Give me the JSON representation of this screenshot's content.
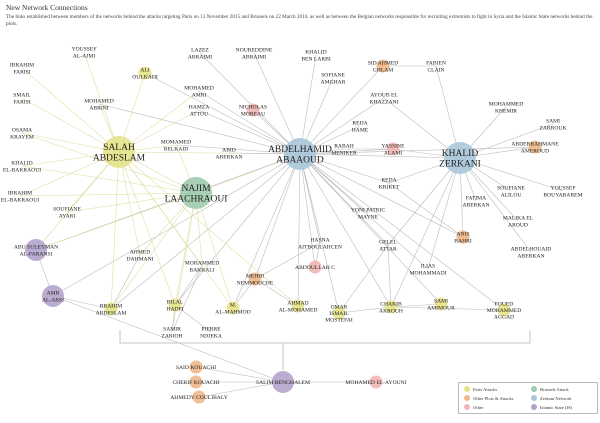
{
  "title": "New Network Connections",
  "description": "The links established between members of the networks behind the attacks targeting Paris on 13 November 2015 and Brussels on 22 March 2016, as well as between the Belgian networks responsible for recruiting extremists to fight in Syria and the Islamic State networks behind the plots.",
  "colors": {
    "paris": "#e6e28a",
    "brussels": "#9fcbae",
    "other_plots": "#f0b88a",
    "zerkani": "#a8c6d8",
    "other": "#f1b7b5",
    "islamic_state": "#b4a4cc",
    "edge": "#b5b5b5",
    "edge_paris": "#dedc9a"
  },
  "legend": {
    "items": [
      {
        "label": "Paris Attacks",
        "color_key": "paris"
      },
      {
        "label": "Brussels Attack",
        "color_key": "brussels"
      },
      {
        "label": "Other Plots & Attacks",
        "color_key": "other_plots"
      },
      {
        "label": "Zerkani Network",
        "color_key": "zerkani"
      },
      {
        "label": "Other",
        "color_key": "other"
      },
      {
        "label": "Islamic State (IS)",
        "color_key": "islamic_state"
      }
    ]
  },
  "network": {
    "nodes": [
      {
        "id": "youssef_alajmi",
        "lines": [
          "YOUSSEF",
          "AL-AJMI"
        ],
        "group": "none",
        "weight": 0
      },
      {
        "id": "ibrahim_farisi",
        "lines": [
          "IBRAHIM",
          "FARISI"
        ],
        "group": "none",
        "weight": 0
      },
      {
        "id": "smail_farisi",
        "lines": [
          "SMAIL",
          "FARISI"
        ],
        "group": "none",
        "weight": 0
      },
      {
        "id": "ali_oulkadi",
        "lines": [
          "ALI",
          "OULKADI"
        ],
        "group": "paris",
        "weight": 1
      },
      {
        "id": "lazez_abraimi",
        "lines": [
          "LAZEZ",
          "ABRAIMI"
        ],
        "group": "none",
        "weight": 0
      },
      {
        "id": "noureddine_abraimi",
        "lines": [
          "NOUREDDINE",
          "ABRAIMI"
        ],
        "group": "none",
        "weight": 0
      },
      {
        "id": "khalid_benlarbi",
        "lines": [
          "KHALID",
          "BEN LARBI"
        ],
        "group": "none",
        "weight": 0
      },
      {
        "id": "sid_ahmed_ghlam",
        "lines": [
          "SID AHMED",
          "GHLAM"
        ],
        "group": "other_plots",
        "weight": 1
      },
      {
        "id": "fabien_clain",
        "lines": [
          "FABIEN",
          "CLAIN"
        ],
        "group": "none",
        "weight": 0
      },
      {
        "id": "sofiane_amghar",
        "lines": [
          "SOFIANE",
          "AMGHAR"
        ],
        "group": "none",
        "weight": 0
      },
      {
        "id": "mohamed_abrini",
        "lines": [
          "MOHAMED",
          "ABRINI"
        ],
        "group": "none",
        "weight": 0
      },
      {
        "id": "mohamed_amri",
        "lines": [
          "MOHAMED",
          "AMRI"
        ],
        "group": "none",
        "weight": 0
      },
      {
        "id": "ayoub_elkhazzani",
        "lines": [
          "AYOUB EL",
          "KHAZZANI"
        ],
        "group": "none",
        "weight": 0
      },
      {
        "id": "mohammed_khemir",
        "lines": [
          "MOHAMMED",
          "KHEMIR"
        ],
        "group": "none",
        "weight": 0
      },
      {
        "id": "hamza_attou",
        "lines": [
          "HAMZA",
          "ATTOU"
        ],
        "group": "none",
        "weight": 0
      },
      {
        "id": "nicholas_moreau",
        "lines": [
          "NICHOLAS",
          "MOREAU"
        ],
        "group": "other",
        "weight": 1
      },
      {
        "id": "osama_krayem",
        "lines": [
          "OSAMA",
          "KRAYEM"
        ],
        "group": "none",
        "weight": 0
      },
      {
        "id": "reda_hame",
        "lines": [
          "REDA",
          "HAME"
        ],
        "group": "none",
        "weight": 0
      },
      {
        "id": "sami_zarrouk",
        "lines": [
          "SAMI",
          "ZARROUK"
        ],
        "group": "none",
        "weight": 0
      },
      {
        "id": "salah_abdeslam",
        "lines": [
          "SALAH",
          "ABDESLAM"
        ],
        "group": "paris",
        "weight": 3
      },
      {
        "id": "mohamed_belkaid",
        "lines": [
          "MOMAMED",
          "BELKAID"
        ],
        "group": "none",
        "weight": 0
      },
      {
        "id": "abid_aberkan",
        "lines": [
          "ABID",
          "ABERKAN"
        ],
        "group": "none",
        "weight": 0
      },
      {
        "id": "abdelhamid_abaaoud",
        "lines": [
          "ABDELHAMID",
          "ABAAOUD"
        ],
        "group": "zerkani",
        "weight": 3
      },
      {
        "id": "rabah_meniker",
        "lines": [
          "RABAH",
          "MENIKER"
        ],
        "group": "none",
        "weight": 0
      },
      {
        "id": "yassine_alami",
        "lines": [
          "YASSINE",
          "ALAMI"
        ],
        "group": "other",
        "weight": 1
      },
      {
        "id": "khalid_zerkani",
        "lines": [
          "KHALID",
          "ZERKANI"
        ],
        "group": "zerkani",
        "weight": 3
      },
      {
        "id": "abderrahmane_ameroud",
        "lines": [
          "ABDERRAHMANE",
          "AMEROUD"
        ],
        "group": "other_plots",
        "weight": 1
      },
      {
        "id": "khalid_elbakraoui",
        "lines": [
          "KHALID",
          "EL-BAKRAOUI"
        ],
        "group": "none",
        "weight": 0
      },
      {
        "id": "najim_laachraoui",
        "lines": [
          "NAJIM",
          "LAACHRAOUI"
        ],
        "group": "brussels",
        "weight": 3
      },
      {
        "id": "reda_kriket",
        "lines": [
          "REDA",
          "KRIKET"
        ],
        "group": "none",
        "weight": 0
      },
      {
        "id": "fatima_aberkan",
        "lines": [
          "FATIMA",
          "ABERKAN"
        ],
        "group": "none",
        "weight": 0
      },
      {
        "id": "soufiane_alilou",
        "lines": [
          "SOUFIANE",
          "ALILOU"
        ],
        "group": "none",
        "weight": 0
      },
      {
        "id": "youssef_bouyabarem",
        "lines": [
          "YOUSSEF",
          "BOUYABAREM"
        ],
        "group": "none",
        "weight": 0
      },
      {
        "id": "ibrahim_elbakraoui",
        "lines": [
          "IBRAHIM",
          "EL-BAKRAOUI"
        ],
        "group": "none",
        "weight": 0
      },
      {
        "id": "soufiane_ayari",
        "lines": [
          "SOUFIANE",
          "AYARI"
        ],
        "group": "none",
        "weight": 0
      },
      {
        "id": "yoni_patric_mayne",
        "lines": [
          "YONI PATRIC",
          "MAYNE"
        ],
        "group": "none",
        "weight": 0
      },
      {
        "id": "malika_elaroud",
        "lines": [
          "MALIKA EL",
          "AROUD"
        ],
        "group": "none",
        "weight": 0
      },
      {
        "id": "anis_bahri",
        "lines": [
          "ANIS",
          "BAHRI"
        ],
        "group": "other_plots",
        "weight": 1
      },
      {
        "id": "abu_suleyman",
        "lines": [
          "ABU SULEYMAN",
          "AL-FARANSI"
        ],
        "group": "islamic_state",
        "weight": 2
      },
      {
        "id": "hasna_aitboulahcen",
        "lines": [
          "HASNA",
          "AITBOULAHCEN"
        ],
        "group": "none",
        "weight": 0
      },
      {
        "id": "gelel_attar",
        "lines": [
          "GELEL",
          "ATTAR"
        ],
        "group": "none",
        "weight": 0
      },
      {
        "id": "abdelhouaid_aberkan",
        "lines": [
          "ABDELHOUAID",
          "ABERKAN"
        ],
        "group": "none",
        "weight": 0
      },
      {
        "id": "ahmed_dahmani",
        "lines": [
          "AHMED",
          "DAHMANI"
        ],
        "group": "none",
        "weight": 0
      },
      {
        "id": "mohammed_bakkali",
        "lines": [
          "MOHAMMED",
          "BAKKALI"
        ],
        "group": "none",
        "weight": 0
      },
      {
        "id": "abdoullah_c",
        "lines": [
          "ABDOULLAH C"
        ],
        "group": "other",
        "weight": 1
      },
      {
        "id": "ilias_mohammadi",
        "lines": [
          "ILIAS",
          "MOHAMMADI"
        ],
        "group": "none",
        "weight": 0
      },
      {
        "id": "mehdi_nemmouche",
        "lines": [
          "MEHDI",
          "NEMMOUCHE"
        ],
        "group": "other_plots",
        "weight": 1
      },
      {
        "id": "amr_alabsi",
        "lines": [
          "AMR",
          "AL-ABSI"
        ],
        "group": "islamic_state",
        "weight": 2
      },
      {
        "id": "brahim_abdeslam",
        "lines": [
          "BRAHIM",
          "ABDESLAM"
        ],
        "group": "paris",
        "weight": 1
      },
      {
        "id": "bilal_hadfi",
        "lines": [
          "BILAL",
          "HADFI"
        ],
        "group": "paris",
        "weight": 1
      },
      {
        "id": "m_almahmod",
        "lines": [
          "M.",
          "AL-MAHMOD"
        ],
        "group": "paris",
        "weight": 1
      },
      {
        "id": "ahmad_almohamed",
        "lines": [
          "AHMAD",
          "AL-MOHAMED"
        ],
        "group": "paris",
        "weight": 1
      },
      {
        "id": "omar_ismail_mostefai",
        "lines": [
          "OMAR",
          "ISMAIL",
          "MOSTEFAI"
        ],
        "group": "paris",
        "weight": 1
      },
      {
        "id": "chakib_akrouh",
        "lines": [
          "CHAKIB",
          "AKROUH"
        ],
        "group": "paris",
        "weight": 1
      },
      {
        "id": "sami_amimour",
        "lines": [
          "SAMI",
          "AMIMOUR"
        ],
        "group": "paris",
        "weight": 1
      },
      {
        "id": "foued_mohamed_aggad",
        "lines": [
          "FOUED",
          "MOHAMMED",
          "AGGAD"
        ],
        "group": "paris",
        "weight": 1
      },
      {
        "id": "samir_zariouh",
        "lines": [
          "SAMIR",
          "ZARIOH"
        ],
        "group": "none",
        "weight": 0
      },
      {
        "id": "pierre_ndjeka",
        "lines": [
          "PIERRE",
          "NDJEKA"
        ],
        "group": "none",
        "weight": 0
      },
      {
        "id": "said_kouachi",
        "lines": [
          "SAID KOUACHI"
        ],
        "group": "other_plots",
        "weight": 1
      },
      {
        "id": "cherif_kouachi",
        "lines": [
          "CHERIF KOUACHI"
        ],
        "group": "other_plots",
        "weight": 1
      },
      {
        "id": "ahmedy_coulibaly",
        "lines": [
          "AHMEDY COULIBALY"
        ],
        "group": "other_plots",
        "weight": 1
      },
      {
        "id": "salim_benghalem",
        "lines": [
          "SALIM BENGHALEM"
        ],
        "group": "islamic_state",
        "weight": 2
      },
      {
        "id": "mohamed_elayouni",
        "lines": [
          "MOHAMED EL-AYOUNI"
        ],
        "group": "other",
        "weight": 1
      }
    ],
    "edges": [
      [
        "abdelhamid_abaaoud",
        "salah_abdeslam"
      ],
      [
        "abdelhamid_abaaoud",
        "khalid_zerkani"
      ],
      [
        "abdelhamid_abaaoud",
        "najim_laachraoui"
      ],
      [
        "abdelhamid_abaaoud",
        "noureddine_abraimi"
      ],
      [
        "abdelhamid_abaaoud",
        "lazez_abraimi"
      ],
      [
        "abdelhamid_abaaoud",
        "khalid_benlarbi"
      ],
      [
        "abdelhamid_abaaoud",
        "sid_ahmed_ghlam"
      ],
      [
        "abdelhamid_abaaoud",
        "sofiane_amghar"
      ],
      [
        "abdelhamid_abaaoud",
        "ayoub_elkhazzani"
      ],
      [
        "abdelhamid_abaaoud",
        "reda_hame"
      ],
      [
        "abdelhamid_abaaoud",
        "rabah_meniker"
      ],
      [
        "abdelhamid_abaaoud",
        "yassine_alami"
      ],
      [
        "abdelhamid_abaaoud",
        "reda_kriket"
      ],
      [
        "abdelhamid_abaaoud",
        "nicholas_moreau"
      ],
      [
        "abdelhamid_abaaoud",
        "abid_aberkan"
      ],
      [
        "abdelhamid_abaaoud",
        "mohamed_amri"
      ],
      [
        "abdelhamid_abaaoud",
        "hamza_attou"
      ],
      [
        "abdelhamid_abaaoud",
        "mohamed_belkaid"
      ],
      [
        "abdelhamid_abaaoud",
        "mohamed_abrini"
      ],
      [
        "abdelhamid_abaaoud",
        "ali_oulkadi"
      ],
      [
        "abdelhamid_abaaoud",
        "hasna_aitboulahcen"
      ],
      [
        "abdelhamid_abaaoud",
        "gelel_attar"
      ],
      [
        "abdelhamid_abaaoud",
        "chakib_akrouh"
      ],
      [
        "abdelhamid_abaaoud",
        "mehdi_nemmouche"
      ],
      [
        "abdelhamid_abaaoud",
        "abu_suleyman"
      ],
      [
        "abdelhamid_abaaoud",
        "amr_alabsi"
      ],
      [
        "abdelhamid_abaaoud",
        "brahim_abdeslam"
      ],
      [
        "abdelhamid_abaaoud",
        "bilal_hadfi"
      ],
      [
        "abdelhamid_abaaoud",
        "m_almahmod"
      ],
      [
        "abdelhamid_abaaoud",
        "ahmad_almohamed"
      ],
      [
        "abdelhamid_abaaoud",
        "omar_ismail_mostefai"
      ],
      [
        "abdelhamid_abaaoud",
        "sami_amimour"
      ],
      [
        "abdelhamid_abaaoud",
        "foued_mohamed_aggad"
      ],
      [
        "abdelhamid_abaaoud",
        "anis_bahri"
      ],
      [
        "abdelhamid_abaaoud",
        "yoni_patric_mayne"
      ],
      [
        "abdelhamid_abaaoud",
        "ilias_mohammadi"
      ],
      [
        "abdelhamid_abaaoud",
        "abdoullah_c"
      ],
      [
        "abdelhamid_abaaoud",
        "abderrahmane_ameroud"
      ],
      [
        "khalid_zerkani",
        "mohammed_khemir"
      ],
      [
        "khalid_zerkani",
        "sami_zarrouk"
      ],
      [
        "khalid_zerkani",
        "abderrahmane_ameroud"
      ],
      [
        "khalid_zerkani",
        "soufiane_alilou"
      ],
      [
        "khalid_zerkani",
        "youssef_bouyabarem"
      ],
      [
        "khalid_zerkani",
        "fatima_aberkan"
      ],
      [
        "khalid_zerkani",
        "malika_elaroud"
      ],
      [
        "khalid_zerkani",
        "abdelhouaid_aberkan"
      ],
      [
        "khalid_zerkani",
        "anis_bahri"
      ],
      [
        "khalid_zerkani",
        "reda_kriket"
      ],
      [
        "khalid_zerkani",
        "gelel_attar"
      ],
      [
        "khalid_zerkani",
        "yassine_alami"
      ],
      [
        "khalid_zerkani",
        "chakib_akrouh"
      ],
      [
        "khalid_zerkani",
        "ayoub_elkhazzani"
      ],
      [
        "khalid_zerkani",
        "fabien_clain"
      ],
      [
        "khalid_zerkani",
        "ilias_mohammadi"
      ],
      [
        "salah_abdeslam",
        "youssef_alajmi"
      ],
      [
        "salah_abdeslam",
        "ibrahim_farisi"
      ],
      [
        "salah_abdeslam",
        "smail_farisi"
      ],
      [
        "salah_abdeslam",
        "mohamed_abrini"
      ],
      [
        "salah_abdeslam",
        "osama_krayem"
      ],
      [
        "salah_abdeslam",
        "khalid_elbakraoui"
      ],
      [
        "salah_abdeslam",
        "ibrahim_elbakraoui"
      ],
      [
        "salah_abdeslam",
        "soufiane_ayari"
      ],
      [
        "salah_abdeslam",
        "mohamed_belkaid"
      ],
      [
        "salah_abdeslam",
        "najim_laachraoui"
      ],
      [
        "salah_abdeslam",
        "ali_oulkadi"
      ],
      [
        "salah_abdeslam",
        "mohamed_amri"
      ],
      [
        "salah_abdeslam",
        "hamza_attou"
      ],
      [
        "salah_abdeslam",
        "brahim_abdeslam"
      ],
      [
        "salah_abdeslam",
        "ahmed_dahmani"
      ],
      [
        "salah_abdeslam",
        "mohammed_bakkali"
      ],
      [
        "salah_abdeslam",
        "abu_suleyman"
      ],
      [
        "salah_abdeslam",
        "bilal_hadfi"
      ],
      [
        "salah_abdeslam",
        "m_almahmod"
      ],
      [
        "salah_abdeslam",
        "ahmad_almohamed"
      ],
      [
        "najim_laachraoui",
        "mohamed_belkaid"
      ],
      [
        "najim_laachraoui",
        "khalid_elbakraoui"
      ],
      [
        "najim_laachraoui",
        "ibrahim_elbakraoui"
      ],
      [
        "najim_laachraoui",
        "soufiane_ayari"
      ],
      [
        "najim_laachraoui",
        "mohammed_bakkali"
      ],
      [
        "najim_laachraoui",
        "ahmed_dahmani"
      ],
      [
        "najim_laachraoui",
        "brahim_abdeslam"
      ],
      [
        "najim_laachraoui",
        "abu_suleyman"
      ],
      [
        "najim_laachraoui",
        "bilal_hadfi"
      ],
      [
        "najim_laachraoui",
        "osama_krayem"
      ],
      [
        "najim_laachraoui",
        "m_almahmod"
      ],
      [
        "najim_laachraoui",
        "samir_zariouh"
      ],
      [
        "amr_alabsi",
        "abu_suleyman"
      ],
      [
        "amr_alabsi",
        "brahim_abdeslam"
      ],
      [
        "amr_alabsi",
        "salim_benghalem"
      ],
      [
        "hasna_aitboulahcen",
        "mehdi_nemmouche"
      ],
      [
        "hasna_aitboulahcen",
        "abdoullah_c"
      ],
      [
        "mehdi_nemmouche",
        "ahmad_almohamed"
      ],
      [
        "mehdi_nemmouche",
        "m_almahmod"
      ],
      [
        "gelel_attar",
        "chakib_akrouh"
      ],
      [
        "gelel_attar",
        "omar_ismail_mostefai"
      ],
      [
        "chakib_akrouh",
        "sami_amimour"
      ],
      [
        "chakib_akrouh",
        "foued_mohamed_aggad"
      ],
      [
        "chakib_akrouh",
        "omar_ismail_mostefai"
      ],
      [
        "mohammed_bakkali",
        "bilal_hadfi"
      ],
      [
        "mohammed_bakkali",
        "samir_zariouh"
      ],
      [
        "ahmed_dahmani",
        "brahim_abdeslam"
      ],
      [
        "bilal_hadfi",
        "pierre_ndjeka"
      ],
      [
        "bilal_hadfi",
        "samir_zariouh"
      ],
      [
        "salim_benghalem",
        "said_kouachi"
      ],
      [
        "salim_benghalem",
        "cherif_kouachi"
      ],
      [
        "salim_benghalem",
        "ahmedy_coulibaly"
      ],
      [
        "salim_benghalem",
        "mohamed_elayouni"
      ],
      [
        "sid_ahmed_ghlam",
        "fabien_clain"
      ],
      [
        "yassine_alami",
        "rabah_meniker"
      ],
      [
        "reda_kriket",
        "anis_bahri"
      ]
    ]
  }
}
